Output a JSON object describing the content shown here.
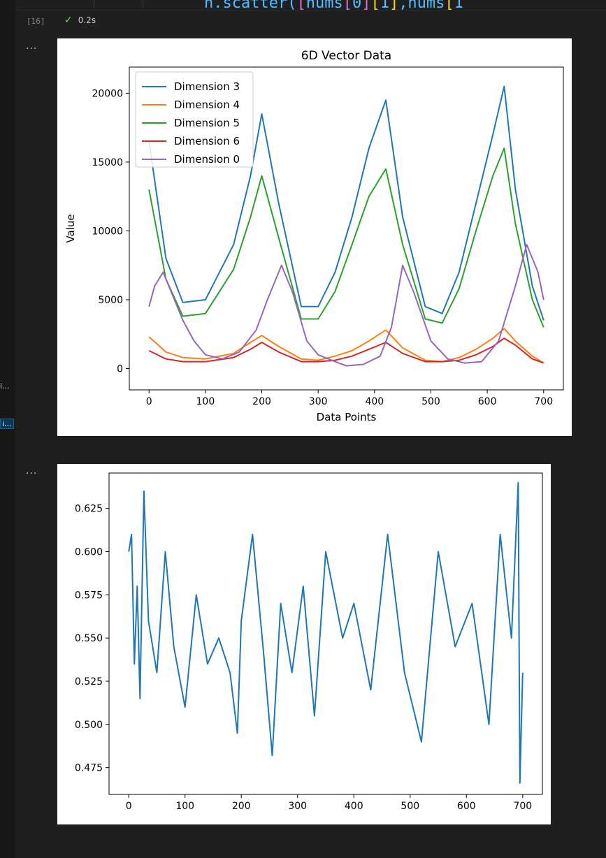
{
  "header": {
    "code_fragment": [
      "n.scatter(",
      "[",
      "nums",
      "[",
      "0",
      "]",
      "[",
      "1",
      "]",
      ",nums",
      "[",
      "1"
    ],
    "execution_count": "[16]",
    "status_icon": "check-icon",
    "duration": "0.2s"
  },
  "sidebar": {
    "items": [
      {
        "label": "i..."
      },
      {
        "label": "i..."
      }
    ]
  },
  "outputs": [
    {
      "more_label": "..."
    },
    {
      "more_label": "..."
    }
  ],
  "colors": {
    "dim3": "#1f77b4",
    "dim4": "#ff7f0e",
    "dim5": "#2ca02c",
    "dim6": "#d62728",
    "dim0": "#9467bd",
    "series2": "#1f77b4",
    "background": "#1f1f1f"
  },
  "chart_data": [
    {
      "type": "line",
      "title": "6D Vector Data",
      "xlabel": "Data Points",
      "ylabel": "Value",
      "xlim": [
        -35,
        735
      ],
      "ylim": [
        -1550,
        21900
      ],
      "xticks": [
        0,
        100,
        200,
        300,
        400,
        500,
        600,
        700
      ],
      "yticks": [
        0,
        5000,
        10000,
        15000,
        20000
      ],
      "legend_position": "upper-left",
      "grid": false,
      "series": [
        {
          "name": "Dimension 3",
          "x": [
            0,
            30,
            60,
            100,
            150,
            180,
            200,
            230,
            270,
            300,
            330,
            360,
            390,
            420,
            450,
            490,
            520,
            550,
            580,
            610,
            630,
            650,
            680,
            700
          ],
          "y": [
            16500,
            8000,
            4800,
            5000,
            9000,
            14000,
            18500,
            12000,
            4500,
            4500,
            7000,
            11000,
            16000,
            19500,
            11000,
            4500,
            4000,
            7000,
            12000,
            17000,
            20500,
            13000,
            6000,
            3500
          ]
        },
        {
          "name": "Dimension 4",
          "x": [
            0,
            30,
            60,
            100,
            150,
            180,
            200,
            230,
            270,
            300,
            330,
            360,
            390,
            420,
            450,
            490,
            520,
            550,
            580,
            610,
            630,
            650,
            680,
            700
          ],
          "y": [
            2300,
            1200,
            800,
            700,
            1100,
            1900,
            2400,
            1600,
            700,
            600,
            900,
            1300,
            2000,
            2800,
            1500,
            600,
            500,
            800,
            1400,
            2200,
            2900,
            2000,
            900,
            400
          ]
        },
        {
          "name": "Dimension 5",
          "x": [
            0,
            30,
            60,
            100,
            150,
            180,
            200,
            230,
            270,
            300,
            330,
            360,
            390,
            420,
            450,
            490,
            520,
            550,
            580,
            610,
            630,
            650,
            680,
            700
          ],
          "y": [
            13000,
            6500,
            3800,
            4000,
            7200,
            11000,
            14000,
            9500,
            3600,
            3600,
            5600,
            9000,
            12500,
            14500,
            9000,
            3600,
            3300,
            5800,
            10000,
            14000,
            16000,
            10500,
            5000,
            3000
          ]
        },
        {
          "name": "Dimension 6",
          "x": [
            0,
            30,
            60,
            100,
            150,
            180,
            200,
            230,
            270,
            300,
            330,
            360,
            390,
            420,
            450,
            490,
            520,
            550,
            580,
            610,
            630,
            650,
            680,
            700
          ],
          "y": [
            1300,
            700,
            500,
            500,
            800,
            1400,
            1900,
            1200,
            500,
            500,
            600,
            900,
            1400,
            1900,
            1100,
            500,
            500,
            600,
            1000,
            1600,
            2200,
            1700,
            700,
            400
          ]
        },
        {
          "name": "Dimension 0",
          "x": [
            0,
            10,
            25,
            40,
            60,
            80,
            100,
            130,
            160,
            190,
            210,
            235,
            255,
            280,
            300,
            330,
            350,
            380,
            410,
            430,
            450,
            470,
            500,
            530,
            560,
            590,
            620,
            650,
            670,
            690,
            700
          ],
          "y": [
            4500,
            6000,
            7000,
            5500,
            3500,
            2000,
            1000,
            700,
            1200,
            2800,
            5000,
            7500,
            5500,
            2000,
            1000,
            500,
            200,
            300,
            900,
            3000,
            7500,
            5500,
            2000,
            700,
            400,
            500,
            2000,
            6000,
            9000,
            7000,
            5000
          ]
        }
      ]
    },
    {
      "type": "line",
      "title": "",
      "xlabel": "",
      "ylabel": "",
      "xlim": [
        -35,
        735
      ],
      "ylim": [
        0.4595,
        0.6455
      ],
      "xticks": [
        0,
        100,
        200,
        300,
        400,
        500,
        600,
        700
      ],
      "yticks": [
        0.475,
        0.5,
        0.525,
        0.55,
        0.575,
        0.6,
        0.625
      ],
      "ytick_labels": [
        "0.475",
        "0.500",
        "0.525",
        "0.550",
        "0.575",
        "0.600",
        "0.625"
      ],
      "grid": false,
      "series": [
        {
          "x": [
            0,
            5,
            10,
            15,
            20,
            27,
            35,
            50,
            65,
            80,
            100,
            120,
            140,
            160,
            180,
            193,
            200,
            220,
            240,
            255,
            270,
            290,
            310,
            330,
            350,
            380,
            400,
            430,
            460,
            490,
            520,
            550,
            580,
            610,
            640,
            660,
            680,
            692,
            695,
            700
          ],
          "y": [
            0.6,
            0.61,
            0.535,
            0.58,
            0.515,
            0.635,
            0.56,
            0.53,
            0.6,
            0.545,
            0.51,
            0.575,
            0.535,
            0.55,
            0.53,
            0.495,
            0.56,
            0.61,
            0.54,
            0.482,
            0.57,
            0.53,
            0.58,
            0.505,
            0.6,
            0.55,
            0.57,
            0.52,
            0.61,
            0.53,
            0.49,
            0.6,
            0.545,
            0.57,
            0.5,
            0.61,
            0.55,
            0.64,
            0.466,
            0.53
          ]
        }
      ]
    }
  ]
}
